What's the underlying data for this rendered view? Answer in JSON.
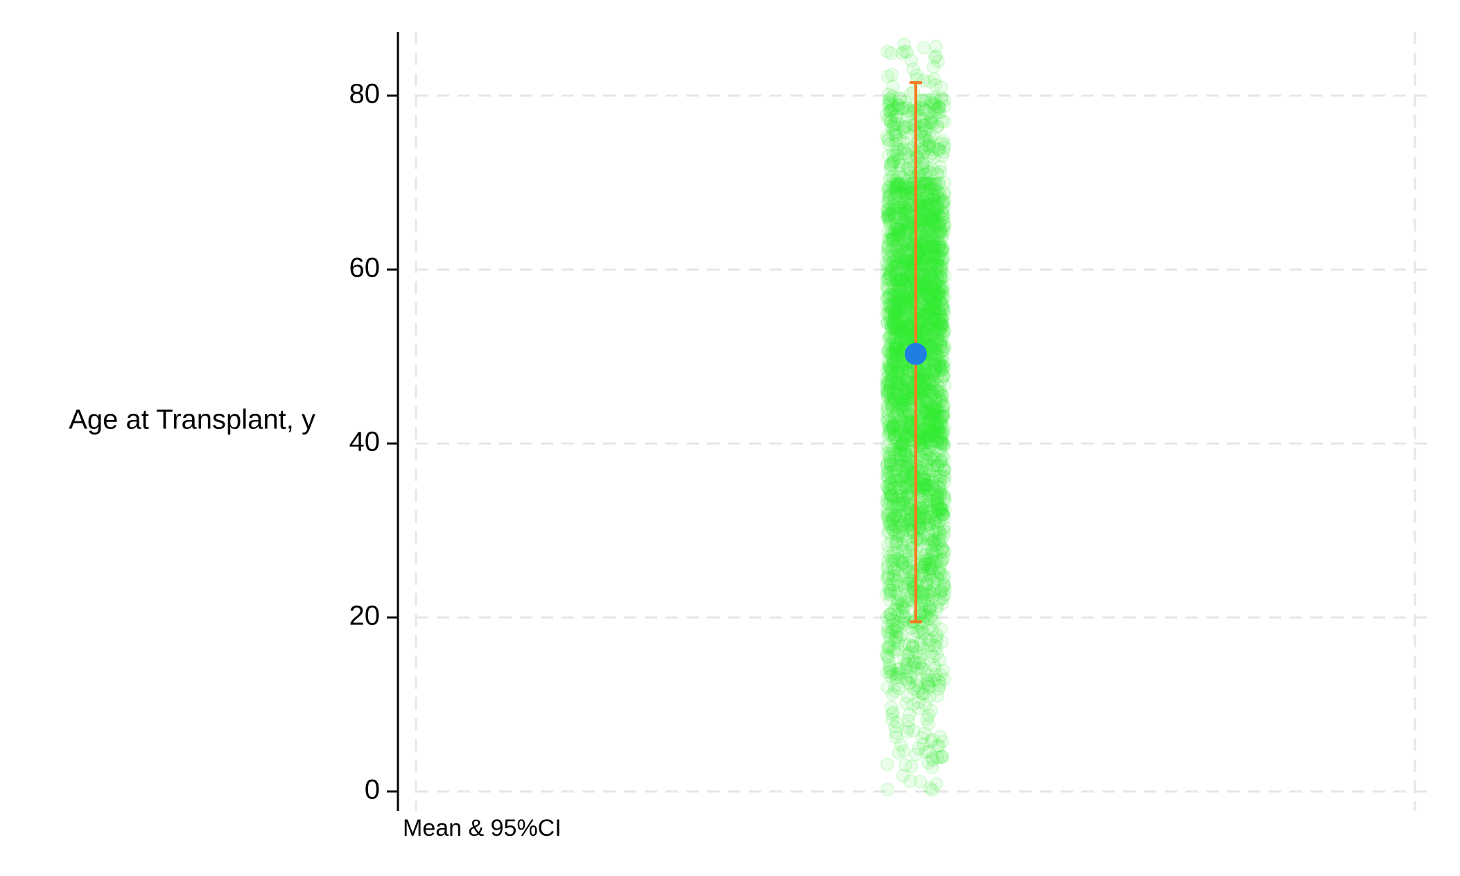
{
  "chart_data": {
    "type": "scatter",
    "title": "",
    "xlabel": "",
    "ylabel": "Age at Transplant, y",
    "ylim": [
      0,
      87
    ],
    "y_ticks": [
      0,
      20,
      40,
      60,
      80
    ],
    "y_tick_labels": [
      "0",
      "20",
      "40",
      "60",
      "80"
    ],
    "grid": true,
    "note": "Mean & 95%CI",
    "series": [
      {
        "kind": "jittered-points",
        "count_approx": 3000,
        "y_min": 0,
        "y_max": 85,
        "distribution": [
          {
            "range": [
              0,
              10
            ],
            "weight": 2
          },
          {
            "range": [
              10,
              20
            ],
            "weight": 6
          },
          {
            "range": [
              20,
              30
            ],
            "weight": 10
          },
          {
            "range": [
              30,
              40
            ],
            "weight": 16
          },
          {
            "range": [
              40,
              50
            ],
            "weight": 22
          },
          {
            "range": [
              50,
              60
            ],
            "weight": 26
          },
          {
            "range": [
              60,
              70
            ],
            "weight": 22
          },
          {
            "range": [
              70,
              80
            ],
            "weight": 8
          },
          {
            "range": [
              80,
              86
            ],
            "weight": 1
          }
        ],
        "color": "#33ee33"
      },
      {
        "kind": "mean",
        "value": 50.3,
        "color": "#1f7fe0"
      },
      {
        "kind": "interval",
        "lower": 19.5,
        "upper": 81.5,
        "color": "#f97a1f"
      }
    ]
  }
}
